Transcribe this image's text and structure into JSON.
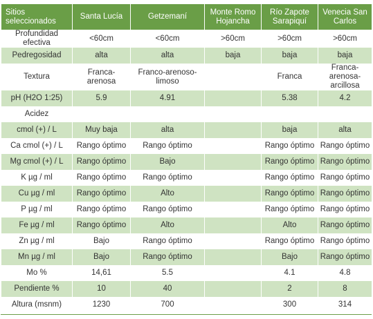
{
  "header": {
    "sites": "Sitios seleccionados",
    "santa_lucia": "Santa Lucía",
    "getzemani": "Getzemaní",
    "monte_romo": "Monte Romo Hojancha",
    "rio_zapote": "Río Zapote Sarapiquí",
    "venecia": "Venecia San Carlos"
  },
  "rows": [
    {
      "label": "Profundidad efectiva",
      "c1": "<60cm",
      "c2": "<60cm",
      "c3": ">60cm",
      "c4": ">60cm",
      "c5": ">60cm"
    },
    {
      "label": "Pedregosidad",
      "c1": "alta",
      "c2": "alta",
      "c3": "baja",
      "c4": "baja",
      "c5": "baja"
    },
    {
      "label": "Textura",
      "c1": "Franca- arenosa",
      "c2": "Franco-arenoso-limoso",
      "c3": "",
      "c4": "Franca",
      "c5": "Franca-arenosa-arcillosa"
    },
    {
      "label": "pH (H2O 1:25)",
      "c1": "5.9",
      "c2": "4.91",
      "c3": "",
      "c4": "5.38",
      "c5": "4.2"
    },
    {
      "label": "Acidez",
      "c1": "",
      "c2": "",
      "c3": "",
      "c4": "",
      "c5": ""
    },
    {
      "label": "cmol (+) / L",
      "c1": "Muy baja",
      "c2": "alta",
      "c3": "",
      "c4": "baja",
      "c5": "alta"
    },
    {
      "label": "Ca cmol (+) / L",
      "c1": "Rango óptimo",
      "c2": "Rango óptimo",
      "c3": "",
      "c4": "Rango óptimo",
      "c5": "Rango óptimo"
    },
    {
      "label": "Mg cmol (+) / L",
      "c1": "Rango óptimo",
      "c2": "Bajo",
      "c3": "",
      "c4": "Rango óptimo",
      "c5": "Rango óptimo"
    },
    {
      "label": "K µg / ml",
      "c1": "Rango óptimo",
      "c2": "Rango óptimo",
      "c3": "",
      "c4": "Rango óptimo",
      "c5": "Rango óptimo"
    },
    {
      "label": "Cu µg / ml",
      "c1": "Rango óptimo",
      "c2": "Alto",
      "c3": "",
      "c4": "Rango óptimo",
      "c5": "Rango óptimo"
    },
    {
      "label": "P µg / ml",
      "c1": "Rango óptimo",
      "c2": "Rango óptimo",
      "c3": "",
      "c4": "Rango óptimo",
      "c5": "Rango óptimo"
    },
    {
      "label": "Fe µg / ml",
      "c1": "Rango óptimo",
      "c2": "Alto",
      "c3": "",
      "c4": "Alto",
      "c5": "Rango óptimo"
    },
    {
      "label": "Zn µg / ml",
      "c1": "Bajo",
      "c2": "Rango óptimo",
      "c3": "",
      "c4": "Rango óptimo",
      "c5": "Rango óptimo"
    },
    {
      "label": "Mn µg / ml",
      "c1": "Bajo",
      "c2": "Rango óptimo",
      "c3": "",
      "c4": "Bajo",
      "c5": "Rango óptimo"
    },
    {
      "label": "Mo %",
      "c1": "14,61",
      "c2": "5.5",
      "c3": "",
      "c4": "4.1",
      "c5": "4.8"
    },
    {
      "label": "Pendiente %",
      "c1": "10",
      "c2": "40",
      "c3": "",
      "c4": "2",
      "c5": "8"
    },
    {
      "label": "Altura (msnm)",
      "c1": "1230",
      "c2": "700",
      "c3": "",
      "c4": "300",
      "c5": "314"
    }
  ],
  "colors": {
    "header_bg": "#6a9e47",
    "stripe": "#cfe3c2"
  }
}
